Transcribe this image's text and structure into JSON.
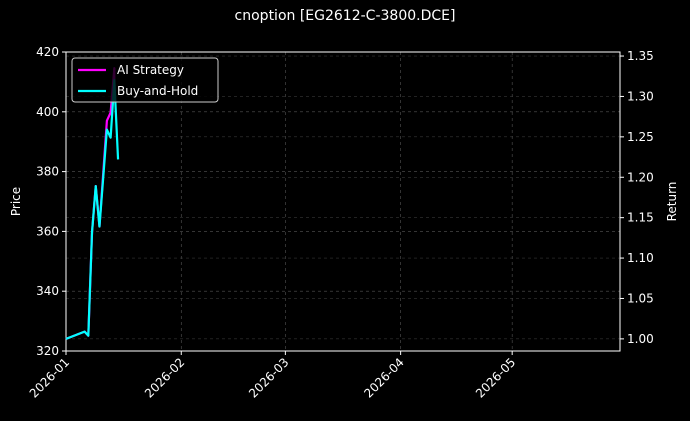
{
  "chart_data": {
    "type": "line",
    "title": "cnoption [EG2612-C-3800.DCE]",
    "ylabel_left": "Price",
    "ylabel_right": "Return",
    "xlim": [
      "2026-01-01",
      "2026-05-30"
    ],
    "ylim_left": [
      320,
      420
    ],
    "ylim_right": [
      0.985,
      1.355
    ],
    "x_ticks": [
      "2026-01",
      "2026-02",
      "2026-03",
      "2026-04",
      "2026-05"
    ],
    "x_tick_dates": [
      "2026-01-01",
      "2026-02-01",
      "2026-03-01",
      "2026-04-01",
      "2026-05-01"
    ],
    "y_ticks_left": [
      320,
      340,
      360,
      380,
      400,
      420
    ],
    "y_ticks_right": [
      "1.00",
      "1.05",
      "1.10",
      "1.15",
      "1.20",
      "1.25",
      "1.30",
      "1.35"
    ],
    "grid": true,
    "legend_position": "top-left",
    "series": [
      {
        "name": "AI Strategy",
        "color": "#ff00ff",
        "x": [
          "2026-01-01",
          "2026-01-06",
          "2026-01-07",
          "2026-01-08",
          "2026-01-09",
          "2026-01-10",
          "2026-01-12",
          "2026-01-13",
          "2026-01-14",
          "2026-01-14"
        ],
        "y": [
          1.0,
          1.009,
          1.004,
          1.132,
          1.189,
          1.139,
          1.27,
          1.28,
          1.335,
          1.3
        ]
      },
      {
        "name": "Buy-and-Hold",
        "color": "#00ffff",
        "x": [
          "2026-01-01",
          "2026-01-06",
          "2026-01-07",
          "2026-01-08",
          "2026-01-09",
          "2026-01-10",
          "2026-01-12",
          "2026-01-13",
          "2026-01-14",
          "2026-01-15"
        ],
        "y": [
          1.0,
          1.009,
          1.004,
          1.132,
          1.189,
          1.139,
          1.259,
          1.249,
          1.32,
          1.222
        ]
      }
    ]
  }
}
